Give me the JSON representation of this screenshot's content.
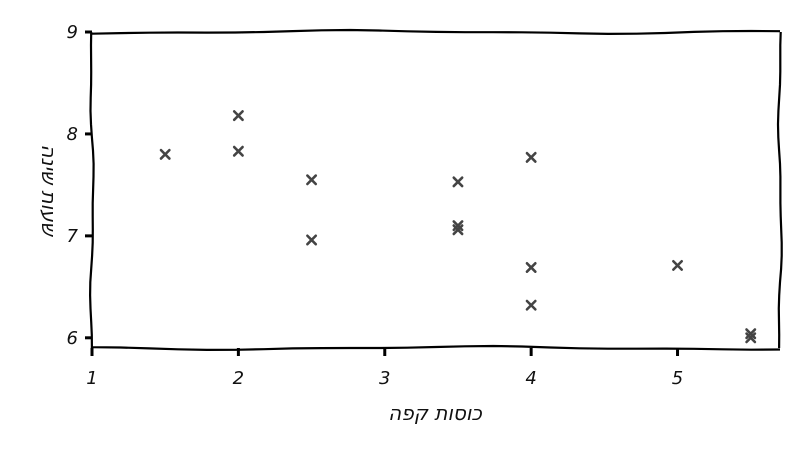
{
  "chart_data": {
    "type": "scatter",
    "title": "",
    "xlabel": "כוסות קפה",
    "ylabel": "שעות שינה",
    "xlim": [
      1,
      5.7
    ],
    "ylim": [
      5.9,
      9.0
    ],
    "x_ticks": [
      "1",
      "2",
      "3",
      "4",
      "5"
    ],
    "y_ticks": [
      "6",
      "7",
      "8",
      "9"
    ],
    "grid": false,
    "marker": "x",
    "marker_color": "#444444",
    "points": [
      {
        "x": 1.5,
        "y": 7.8
      },
      {
        "x": 2.0,
        "y": 8.18
      },
      {
        "x": 2.0,
        "y": 7.83
      },
      {
        "x": 2.5,
        "y": 7.55
      },
      {
        "x": 2.5,
        "y": 6.96
      },
      {
        "x": 3.5,
        "y": 7.53
      },
      {
        "x": 3.5,
        "y": 7.1
      },
      {
        "x": 3.5,
        "y": 7.06
      },
      {
        "x": 4.0,
        "y": 7.77
      },
      {
        "x": 4.0,
        "y": 6.69
      },
      {
        "x": 4.0,
        "y": 6.32
      },
      {
        "x": 5.0,
        "y": 6.71
      },
      {
        "x": 5.5,
        "y": 6.04
      },
      {
        "x": 5.5,
        "y": 6.0
      }
    ]
  }
}
